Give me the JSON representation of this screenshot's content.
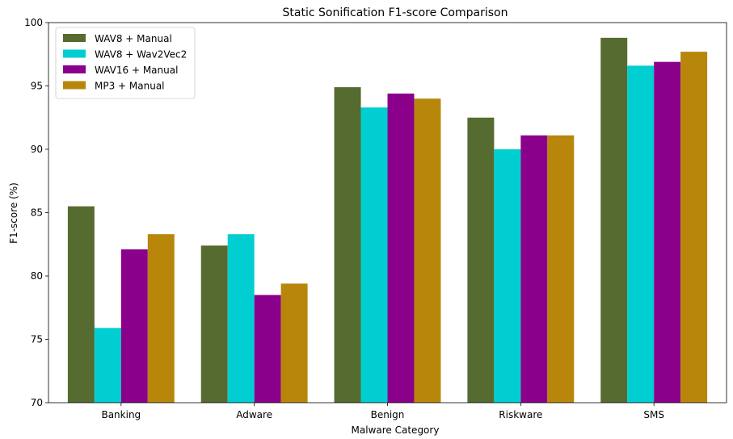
{
  "chart_data": {
    "type": "bar",
    "title": "Static Sonification F1-score Comparison",
    "xlabel": "Malware Category",
    "ylabel": "F1-score (%)",
    "ylim": [
      70,
      100
    ],
    "yticks": [
      70,
      75,
      80,
      85,
      90,
      95,
      100
    ],
    "grid": false,
    "legend_position": "top-left",
    "categories": [
      "Banking",
      "Adware",
      "Benign",
      "Riskware",
      "SMS"
    ],
    "series": [
      {
        "name": "WAV8 + Manual",
        "color": "#556B2F",
        "values": [
          85.5,
          82.4,
          94.9,
          92.5,
          98.8
        ]
      },
      {
        "name": "WAV8 + Wav2Vec2",
        "color": "#00CED1",
        "values": [
          75.9,
          83.3,
          93.3,
          90.0,
          96.6
        ]
      },
      {
        "name": "WAV16 + Manual",
        "color": "#8B008B",
        "values": [
          82.1,
          78.5,
          94.4,
          91.1,
          96.9
        ]
      },
      {
        "name": "MP3 + Manual",
        "color": "#B8860B",
        "values": [
          83.3,
          79.4,
          94.0,
          91.1,
          97.7
        ]
      }
    ]
  }
}
